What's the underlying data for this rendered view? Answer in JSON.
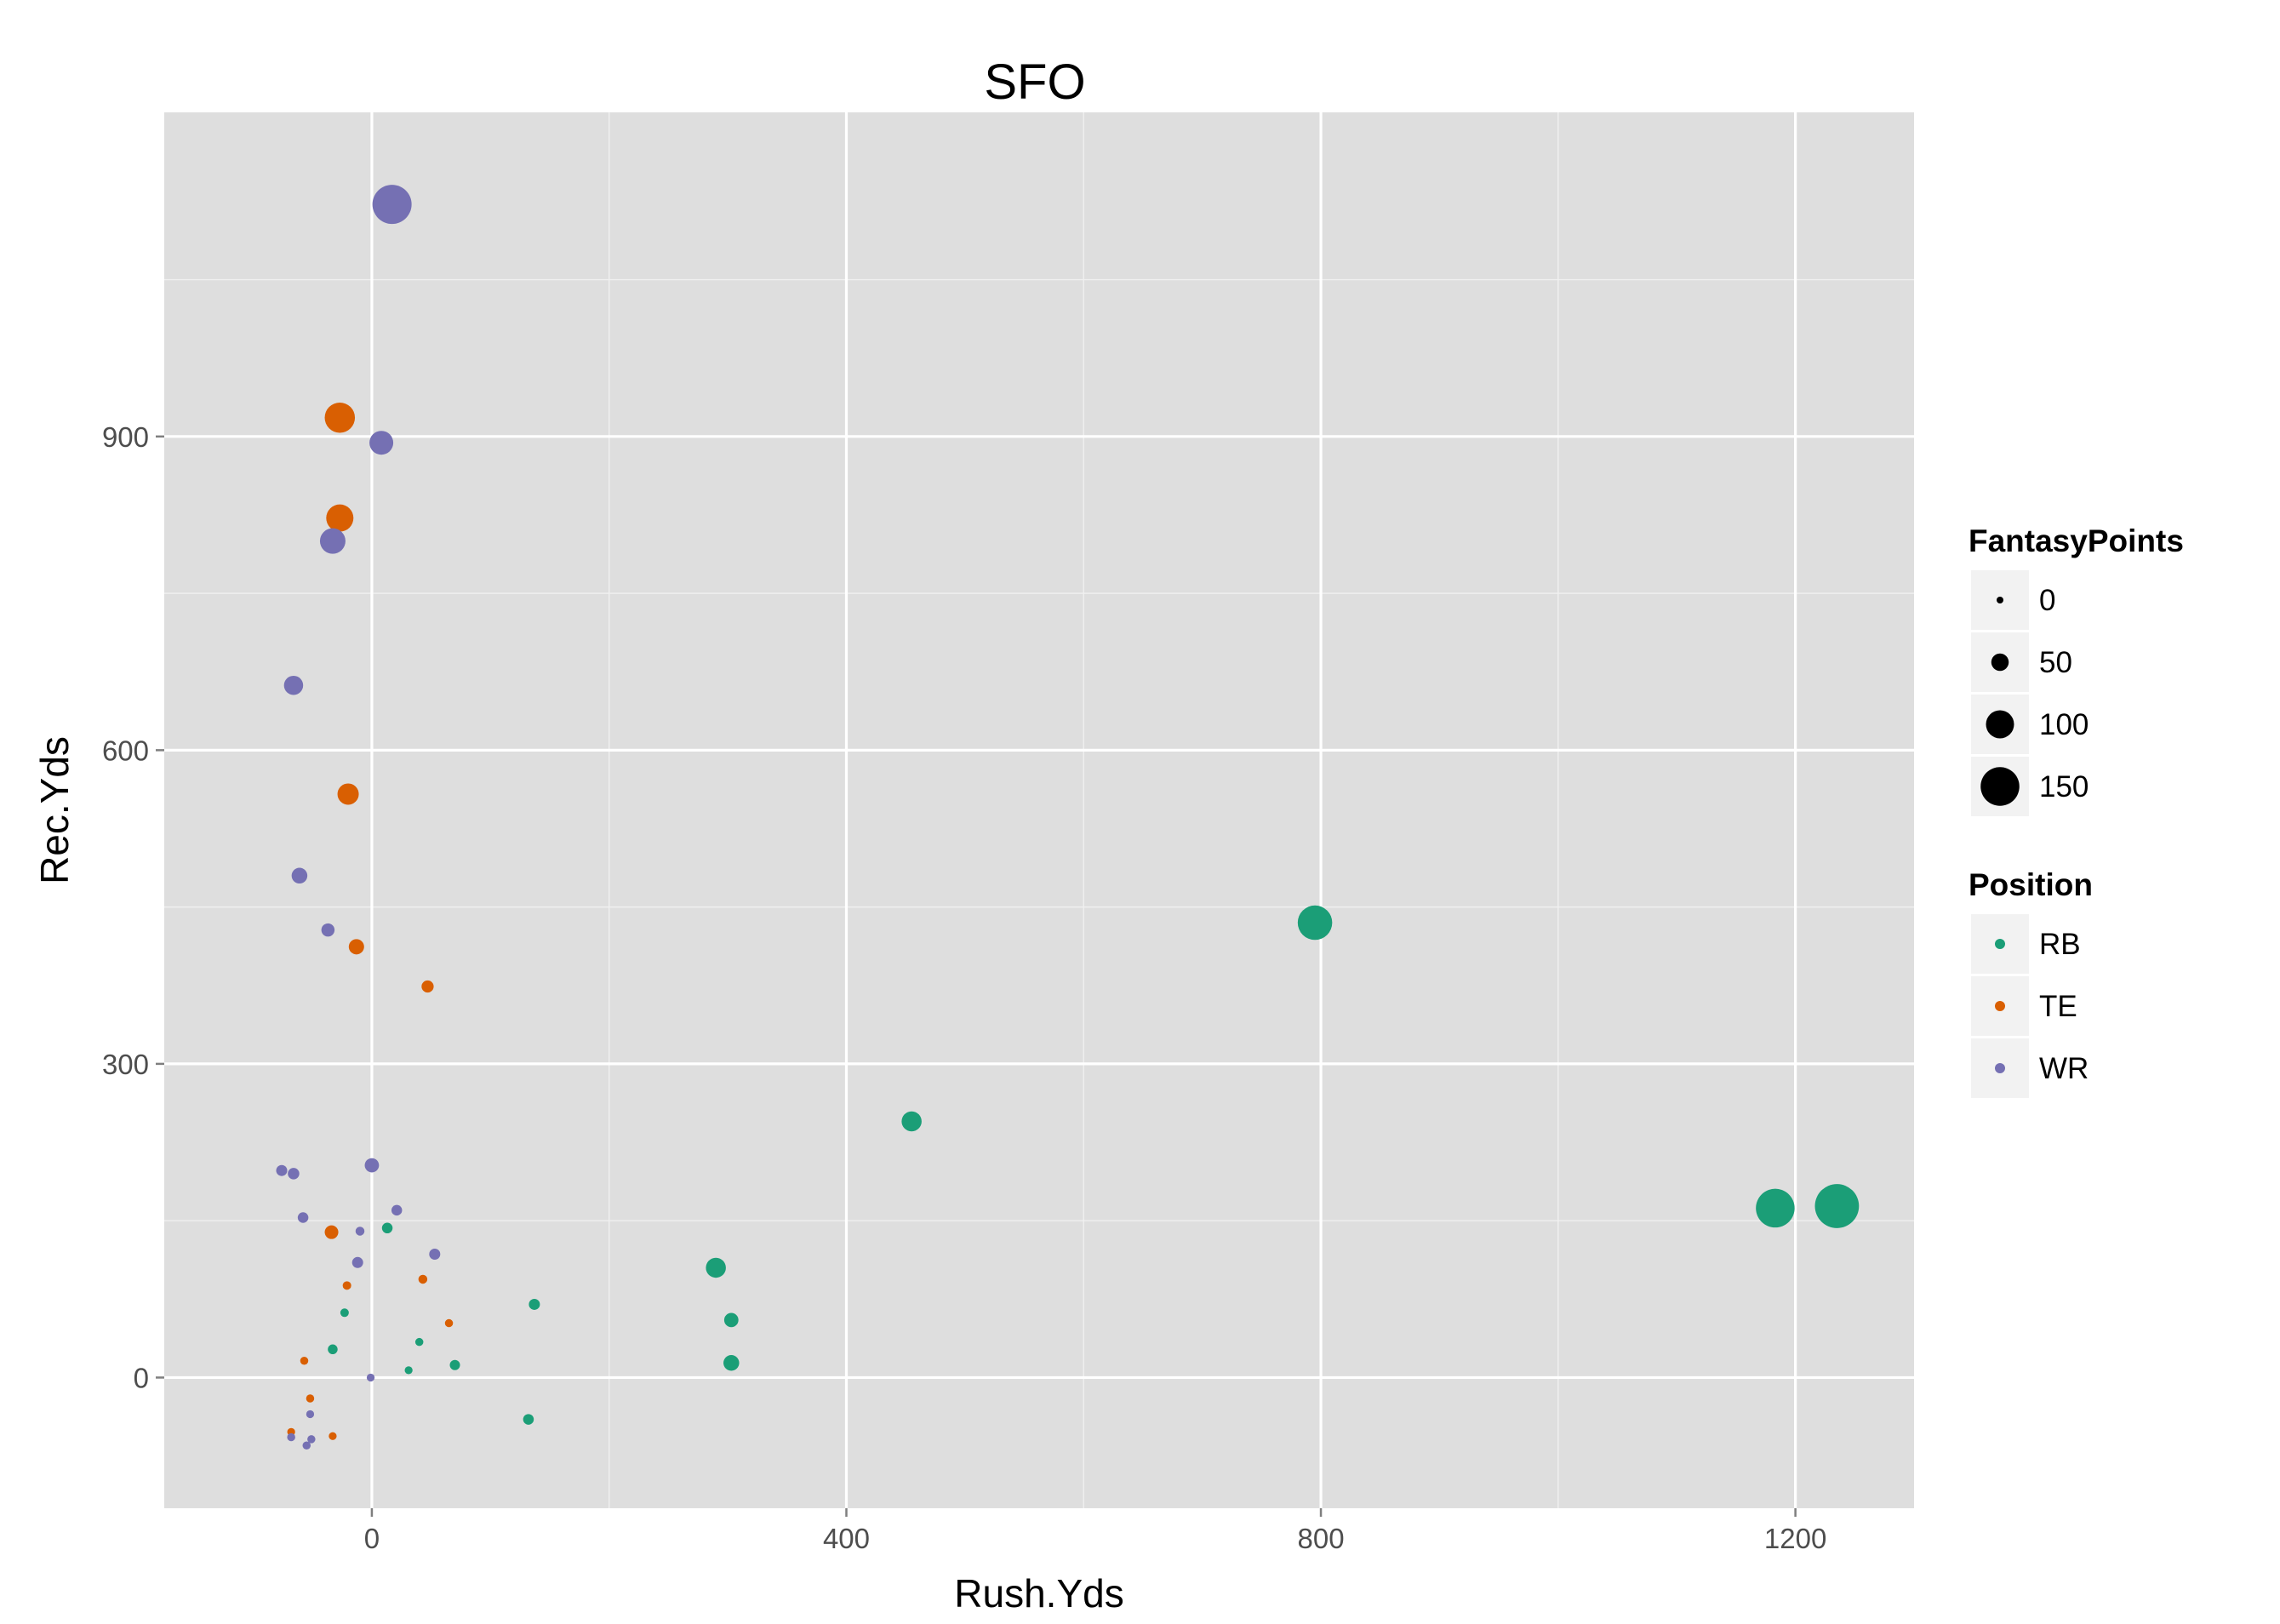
{
  "chart_data": {
    "type": "scatter",
    "title": "SFO",
    "xlabel": "Rush.Yds",
    "ylabel": "Rec.Yds",
    "xlim": [
      -175,
      1300
    ],
    "ylim": [
      -125,
      1210
    ],
    "x_ticks": [
      0,
      400,
      800,
      1200
    ],
    "x_tick_labels": [
      "0",
      "400",
      "800",
      "1200"
    ],
    "y_ticks": [
      0,
      300,
      600,
      900
    ],
    "y_tick_labels": [
      "0",
      "300",
      "600",
      "900"
    ],
    "grid": true,
    "background": "#DEDEDE",
    "size_legend": {
      "title": "FantasyPoints",
      "values": [
        0,
        50,
        100,
        150
      ],
      "labels": [
        "0",
        "50",
        "100",
        "150"
      ]
    },
    "color_legend": {
      "title": "Position",
      "categories": [
        "RB",
        "TE",
        "WR"
      ],
      "colors": {
        "RB": "#1B9E77",
        "TE": "#D95F02",
        "WR": "#7570B3"
      }
    },
    "legend_position": "right",
    "points": [
      {
        "position": "RB",
        "x": 1235,
        "y": 164,
        "fantasy_points": 175
      },
      {
        "position": "RB",
        "x": 1183,
        "y": 162,
        "fantasy_points": 150
      },
      {
        "position": "RB",
        "x": 795,
        "y": 435,
        "fantasy_points": 130
      },
      {
        "position": "RB",
        "x": 455,
        "y": 245,
        "fantasy_points": 62
      },
      {
        "position": "RB",
        "x": 290,
        "y": 105,
        "fantasy_points": 62
      },
      {
        "position": "RB",
        "x": 303,
        "y": 55,
        "fantasy_points": 35
      },
      {
        "position": "RB",
        "x": 303,
        "y": 14,
        "fantasy_points": 42
      },
      {
        "position": "RB",
        "x": 137,
        "y": 70,
        "fantasy_points": 20
      },
      {
        "position": "RB",
        "x": 132,
        "y": -40,
        "fantasy_points": 18
      },
      {
        "position": "RB",
        "x": 70,
        "y": 12,
        "fantasy_points": 16
      },
      {
        "position": "RB",
        "x": 13,
        "y": 143,
        "fantasy_points": 18
      },
      {
        "position": "RB",
        "x": -33,
        "y": 27,
        "fantasy_points": 14
      },
      {
        "position": "RB",
        "x": -23,
        "y": 62,
        "fantasy_points": 8
      },
      {
        "position": "RB",
        "x": 40,
        "y": 34,
        "fantasy_points": 6
      },
      {
        "position": "RB",
        "x": 31,
        "y": 7,
        "fantasy_points": 5
      },
      {
        "position": "TE",
        "x": -27,
        "y": 918,
        "fantasy_points": 110
      },
      {
        "position": "TE",
        "x": -27,
        "y": 822,
        "fantasy_points": 96
      },
      {
        "position": "TE",
        "x": -20,
        "y": 558,
        "fantasy_points": 68
      },
      {
        "position": "TE",
        "x": -13,
        "y": 412,
        "fantasy_points": 40
      },
      {
        "position": "TE",
        "x": 47,
        "y": 374,
        "fantasy_points": 25
      },
      {
        "position": "TE",
        "x": -34,
        "y": 139,
        "fantasy_points": 32
      },
      {
        "position": "TE",
        "x": 43,
        "y": 94,
        "fantasy_points": 10
      },
      {
        "position": "TE",
        "x": -21,
        "y": 88,
        "fantasy_points": 8
      },
      {
        "position": "TE",
        "x": 65,
        "y": 52,
        "fantasy_points": 6
      },
      {
        "position": "TE",
        "x": -57,
        "y": 16,
        "fantasy_points": 6
      },
      {
        "position": "TE",
        "x": -52,
        "y": -20,
        "fantasy_points": 6
      },
      {
        "position": "TE",
        "x": -33,
        "y": -56,
        "fantasy_points": 5
      },
      {
        "position": "TE",
        "x": -68,
        "y": -52,
        "fantasy_points": 5
      },
      {
        "position": "WR",
        "x": 17,
        "y": 1122,
        "fantasy_points": 152
      },
      {
        "position": "WR",
        "x": 8,
        "y": 894,
        "fantasy_points": 80
      },
      {
        "position": "WR",
        "x": -33,
        "y": 800,
        "fantasy_points": 88
      },
      {
        "position": "WR",
        "x": -66,
        "y": 662,
        "fantasy_points": 58
      },
      {
        "position": "WR",
        "x": -61,
        "y": 480,
        "fantasy_points": 42
      },
      {
        "position": "WR",
        "x": -37,
        "y": 428,
        "fantasy_points": 30
      },
      {
        "position": "WR",
        "x": 0,
        "y": 203,
        "fantasy_points": 35
      },
      {
        "position": "WR",
        "x": -76,
        "y": 198,
        "fantasy_points": 20
      },
      {
        "position": "WR",
        "x": -66,
        "y": 195,
        "fantasy_points": 22
      },
      {
        "position": "WR",
        "x": 21,
        "y": 160,
        "fantasy_points": 18
      },
      {
        "position": "WR",
        "x": -58,
        "y": 153,
        "fantasy_points": 18
      },
      {
        "position": "WR",
        "x": -10,
        "y": 140,
        "fantasy_points": 10
      },
      {
        "position": "WR",
        "x": 53,
        "y": 118,
        "fantasy_points": 20
      },
      {
        "position": "WR",
        "x": -12,
        "y": 110,
        "fantasy_points": 20
      },
      {
        "position": "WR",
        "x": -1,
        "y": 0,
        "fantasy_points": 5
      },
      {
        "position": "WR",
        "x": -52,
        "y": -35,
        "fantasy_points": 5
      },
      {
        "position": "WR",
        "x": -68,
        "y": -57,
        "fantasy_points": 6
      },
      {
        "position": "WR",
        "x": -51,
        "y": -59,
        "fantasy_points": 6
      },
      {
        "position": "WR",
        "x": -55,
        "y": -65,
        "fantasy_points": 6
      }
    ]
  }
}
